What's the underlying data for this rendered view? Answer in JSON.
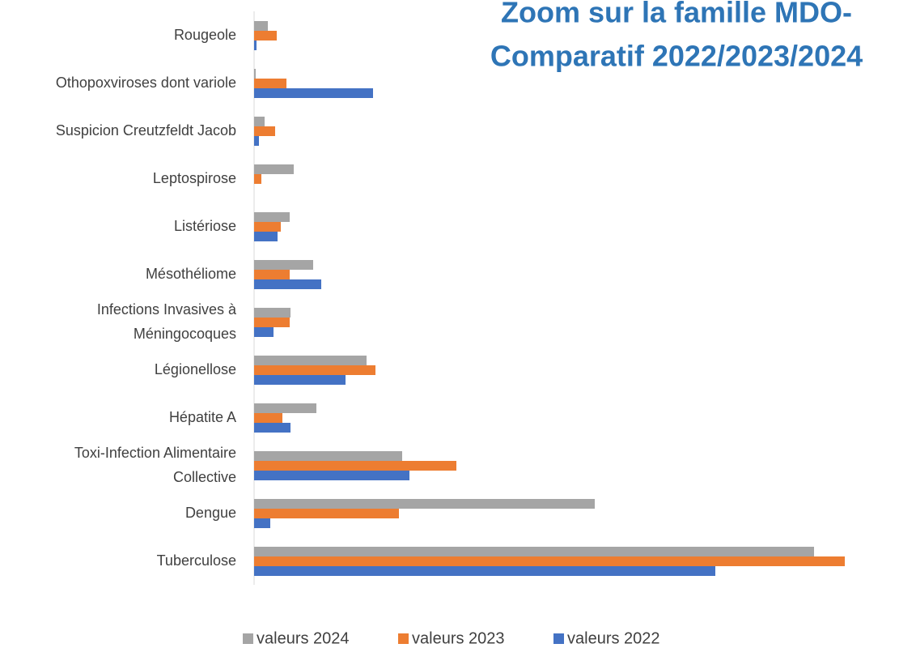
{
  "chart_data": {
    "type": "hbar",
    "title": [
      "Zoom sur la famille MDO-",
      "Comparatif 2022/2023/2024"
    ],
    "categories": [
      [
        "Rougeole"
      ],
      [
        "Othopoxviroses dont variole"
      ],
      [
        "Suspicion Creutzfeldt Jacob"
      ],
      [
        "Leptospirose"
      ],
      [
        "Listériose"
      ],
      [
        "Mésothéliome"
      ],
      [
        "Infections Invasives à",
        "Méningocoques"
      ],
      [
        "Légionellose"
      ],
      [
        "Hépatite A"
      ],
      [
        "Toxi-Infection Alimentaire",
        "Collective"
      ],
      [
        "Dengue"
      ],
      [
        "Tuberculose"
      ]
    ],
    "series": [
      {
        "name": "valeurs 2024",
        "color": "#a5a5a5",
        "values": [
          17,
          2,
          13,
          49,
          44,
          73,
          45,
          139,
          77,
          183,
          421,
          692
        ]
      },
      {
        "name": "valeurs 2023",
        "color": "#ed7d31",
        "values": [
          28,
          40,
          26,
          9,
          33,
          44,
          44,
          150,
          35,
          250,
          179,
          730
        ]
      },
      {
        "name": "valeurs 2022",
        "color": "#4472c4",
        "values": [
          3,
          147,
          6,
          0,
          29,
          83,
          24,
          113,
          45,
          192,
          20,
          570
        ]
      }
    ],
    "xlim": [
      0,
      800
    ],
    "legend": "bottom"
  }
}
